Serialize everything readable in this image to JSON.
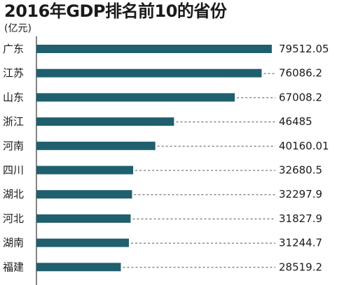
{
  "chart_data": {
    "type": "bar",
    "orientation": "horizontal",
    "title": "2016年GDP排名前10的省份",
    "unit": "(亿元)",
    "categories": [
      "广东",
      "江苏",
      "山东",
      "浙江",
      "河南",
      "四川",
      "湖北",
      "河北",
      "湖南",
      "福建"
    ],
    "values": [
      79512.05,
      76086.2,
      67008.2,
      46485,
      40160.01,
      32680.5,
      32297.9,
      31827.9,
      31244.7,
      28519.2
    ],
    "value_labels": [
      "79512.05",
      "76086.2",
      "67008.2",
      "46485",
      "40160.01",
      "32680.5",
      "32297.9",
      "31827.9",
      "31244.7",
      "28519.2"
    ],
    "xlim": [
      0,
      80000
    ],
    "grid": false,
    "legend": "none",
    "bar_color": "#1f5f6e",
    "leader_line_color": "#555555"
  }
}
